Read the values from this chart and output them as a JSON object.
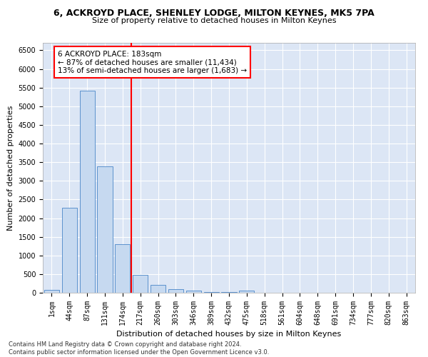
{
  "title_line1": "6, ACKROYD PLACE, SHENLEY LODGE, MILTON KEYNES, MK5 7PA",
  "title_line2": "Size of property relative to detached houses in Milton Keynes",
  "xlabel": "Distribution of detached houses by size in Milton Keynes",
  "ylabel": "Number of detached properties",
  "categories": [
    "1sqm",
    "44sqm",
    "87sqm",
    "131sqm",
    "174sqm",
    "217sqm",
    "260sqm",
    "303sqm",
    "346sqm",
    "389sqm",
    "432sqm",
    "475sqm",
    "518sqm",
    "561sqm",
    "604sqm",
    "648sqm",
    "691sqm",
    "734sqm",
    "777sqm",
    "820sqm",
    "863sqm"
  ],
  "values": [
    70,
    2280,
    5420,
    3380,
    1310,
    470,
    210,
    95,
    50,
    20,
    10,
    60,
    0,
    0,
    0,
    0,
    0,
    0,
    0,
    0,
    0
  ],
  "bar_color": "#c6d9f0",
  "bar_edgecolor": "#4a86c8",
  "red_line_x": 4.5,
  "annotation_text": "6 ACKROYD PLACE: 183sqm\n← 87% of detached houses are smaller (11,434)\n13% of semi-detached houses are larger (1,683) →",
  "annotation_box_color": "white",
  "annotation_box_edgecolor": "red",
  "red_line_color": "red",
  "ylim": [
    0,
    6700
  ],
  "yticks": [
    0,
    500,
    1000,
    1500,
    2000,
    2500,
    3000,
    3500,
    4000,
    4500,
    5000,
    5500,
    6000,
    6500
  ],
  "background_color": "#dce6f5",
  "footnote": "Contains HM Land Registry data © Crown copyright and database right 2024.\nContains public sector information licensed under the Open Government Licence v3.0.",
  "title_fontsize": 9,
  "subtitle_fontsize": 8,
  "xlabel_fontsize": 8,
  "ylabel_fontsize": 8,
  "tick_fontsize": 7,
  "annot_fontsize": 7.5,
  "footnote_fontsize": 6
}
